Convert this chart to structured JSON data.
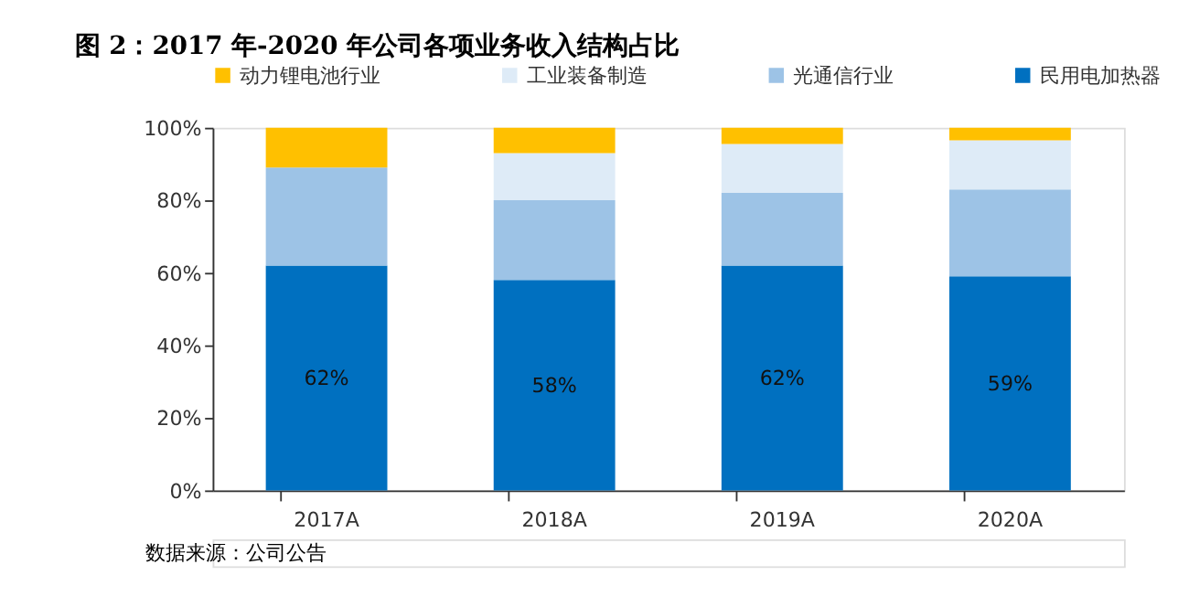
{
  "chart_data": {
    "type": "bar",
    "title": "图 2：2017 年-2020 年公司各项业务收入结构占比",
    "categories": [
      "2017A",
      "2018A",
      "2019A",
      "2020A"
    ],
    "stacked": true,
    "series": [
      {
        "name": "民用电加热器",
        "color": "#0070c0",
        "values": [
          62,
          58,
          62,
          59
        ],
        "value_labels": [
          "62%",
          "58%",
          "62%",
          "59%"
        ]
      },
      {
        "name": "光通信行业",
        "color": "#9dc3e6",
        "values": [
          27,
          22,
          20,
          24
        ]
      },
      {
        "name": "工业装备制造",
        "color": "#deebf7",
        "values": [
          0,
          13,
          13.5,
          13.5
        ]
      },
      {
        "name": "动力锂电池行业",
        "color": "#ffc000",
        "values": [
          11,
          7,
          4.5,
          3.5
        ]
      }
    ],
    "ylim": [
      0,
      100
    ],
    "yticks": [
      {
        "value": 0,
        "label": "0%"
      },
      {
        "value": 20,
        "label": "20%"
      },
      {
        "value": 40,
        "label": "40%"
      },
      {
        "value": 60,
        "label": "60%"
      },
      {
        "value": 80,
        "label": "80%"
      },
      {
        "value": 100,
        "label": "100%"
      }
    ],
    "grid": false,
    "legend": "top",
    "annotations": [
      "数据来源：公司公告"
    ]
  }
}
